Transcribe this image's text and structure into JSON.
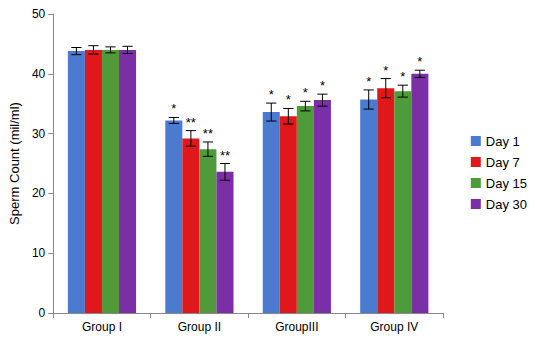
{
  "chart_data": {
    "type": "bar",
    "y_label": "Sperm Count (mil/ml)",
    "categories": [
      "Group I",
      "Group II",
      "GroupIII",
      "Group IV"
    ],
    "series": [
      {
        "name": "Day 1",
        "color": "#4a7bd0",
        "values": [
          43.8,
          32.2,
          33.6,
          35.7
        ],
        "errors": [
          0.6,
          0.5,
          1.5,
          1.6
        ],
        "significance": [
          null,
          "*",
          "*",
          "*"
        ]
      },
      {
        "name": "Day 7",
        "color": "#e0181b",
        "values": [
          44.0,
          29.2,
          32.9,
          37.6
        ],
        "errors": [
          0.7,
          1.3,
          1.3,
          1.6
        ],
        "significance": [
          null,
          "**",
          "*",
          "*"
        ]
      },
      {
        "name": "Day 15",
        "color": "#4f9a3a",
        "values": [
          44.0,
          27.4,
          34.6,
          37.1
        ],
        "errors": [
          0.5,
          1.2,
          0.8,
          1.0
        ],
        "significance": [
          null,
          "**",
          "*",
          "*"
        ]
      },
      {
        "name": "Day 30",
        "color": "#7b2fa6",
        "values": [
          44.0,
          23.6,
          35.6,
          40.0
        ],
        "errors": [
          0.6,
          1.4,
          1.0,
          0.6
        ],
        "significance": [
          null,
          "**",
          "*",
          "*"
        ]
      }
    ],
    "ylim": [
      0,
      50
    ],
    "yticks": [
      0,
      10,
      20,
      30,
      40,
      50
    ],
    "grid": false,
    "legend": "right"
  }
}
